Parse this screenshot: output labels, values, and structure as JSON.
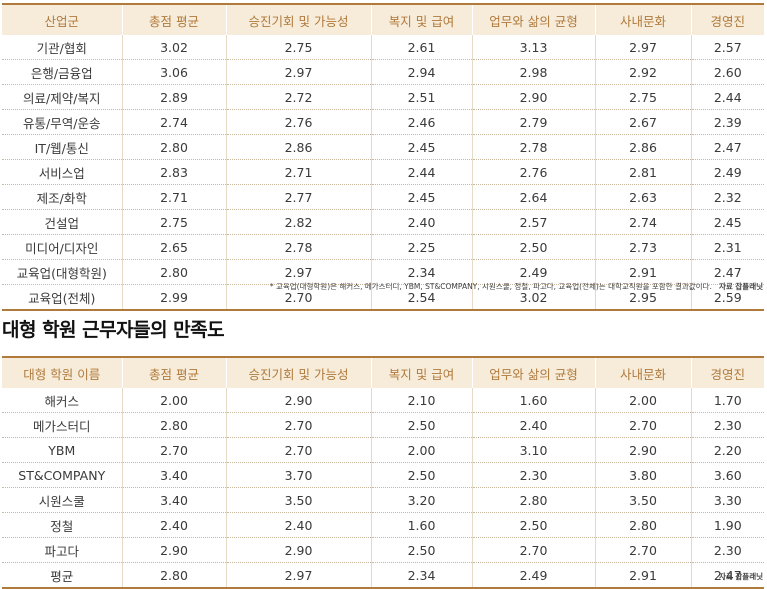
{
  "table1": {
    "headers": [
      "산업군",
      "총점 평균",
      "승진기회 및 가능성",
      "복지 및 급여",
      "업무와 삶의 균형",
      "사내문화",
      "경영진"
    ],
    "rows": [
      [
        "기관/협회",
        "3.02",
        "2.75",
        "2.61",
        "3.13",
        "2.97",
        "2.57"
      ],
      [
        "은행/금융업",
        "3.06",
        "2.97",
        "2.94",
        "2.98",
        "2.92",
        "2.60"
      ],
      [
        "의료/제약/복지",
        "2.89",
        "2.72",
        "2.51",
        "2.90",
        "2.75",
        "2.44"
      ],
      [
        "유통/무역/운송",
        "2.74",
        "2.76",
        "2.46",
        "2.79",
        "2.67",
        "2.39"
      ],
      [
        "IT/웹/통신",
        "2.80",
        "2.86",
        "2.45",
        "2.78",
        "2.86",
        "2.47"
      ],
      [
        "서비스업",
        "2.83",
        "2.71",
        "2.44",
        "2.76",
        "2.81",
        "2.49"
      ],
      [
        "제조/화학",
        "2.71",
        "2.77",
        "2.45",
        "2.64",
        "2.63",
        "2.32"
      ],
      [
        "건설업",
        "2.75",
        "2.82",
        "2.40",
        "2.57",
        "2.74",
        "2.45"
      ],
      [
        "미디어/디자인",
        "2.65",
        "2.78",
        "2.25",
        "2.50",
        "2.73",
        "2.31"
      ],
      [
        "교육업(대형학원)",
        "2.80",
        "2.97",
        "2.34",
        "2.49",
        "2.91",
        "2.47"
      ],
      [
        "교육업(전체)",
        "2.99",
        "2.70",
        "2.54",
        "3.02",
        "2.95",
        "2.59"
      ]
    ],
    "note": "* 교육업(대형학원)은 해커스, 메가스터디, YBM, ST&COMPANY, 시원스쿨, 정철, 파고다, 교육업(전체)는 대학교직원을 포함한 결과값이다.",
    "source": "자료 잡플래닛"
  },
  "section_title": "대형 학원 근무자들의 만족도",
  "table2": {
    "headers": [
      "대형 학원 이름",
      "총점 평균",
      "승진기회 및 가능성",
      "복지 및 급여",
      "업무와 삶의 균형",
      "사내문화",
      "경영진"
    ],
    "rows": [
      [
        "해커스",
        "2.00",
        "2.90",
        "2.10",
        "1.60",
        "2.00",
        "1.70"
      ],
      [
        "메가스터디",
        "2.80",
        "2.70",
        "2.50",
        "2.40",
        "2.70",
        "2.30"
      ],
      [
        "YBM",
        "2.70",
        "2.70",
        "2.00",
        "3.10",
        "2.90",
        "2.20"
      ],
      [
        "ST&COMPANY",
        "3.40",
        "3.70",
        "2.50",
        "2.30",
        "3.80",
        "3.60"
      ],
      [
        "시원스쿨",
        "3.40",
        "3.50",
        "3.20",
        "2.80",
        "3.50",
        "3.30"
      ],
      [
        "정철",
        "2.40",
        "2.40",
        "1.60",
        "2.50",
        "2.80",
        "1.90"
      ],
      [
        "파고다",
        "2.90",
        "2.90",
        "2.50",
        "2.70",
        "2.70",
        "2.30"
      ],
      [
        "평균",
        "2.80",
        "2.97",
        "2.34",
        "2.49",
        "2.91",
        "2.47"
      ]
    ],
    "source": "자료 잡플래닛"
  }
}
